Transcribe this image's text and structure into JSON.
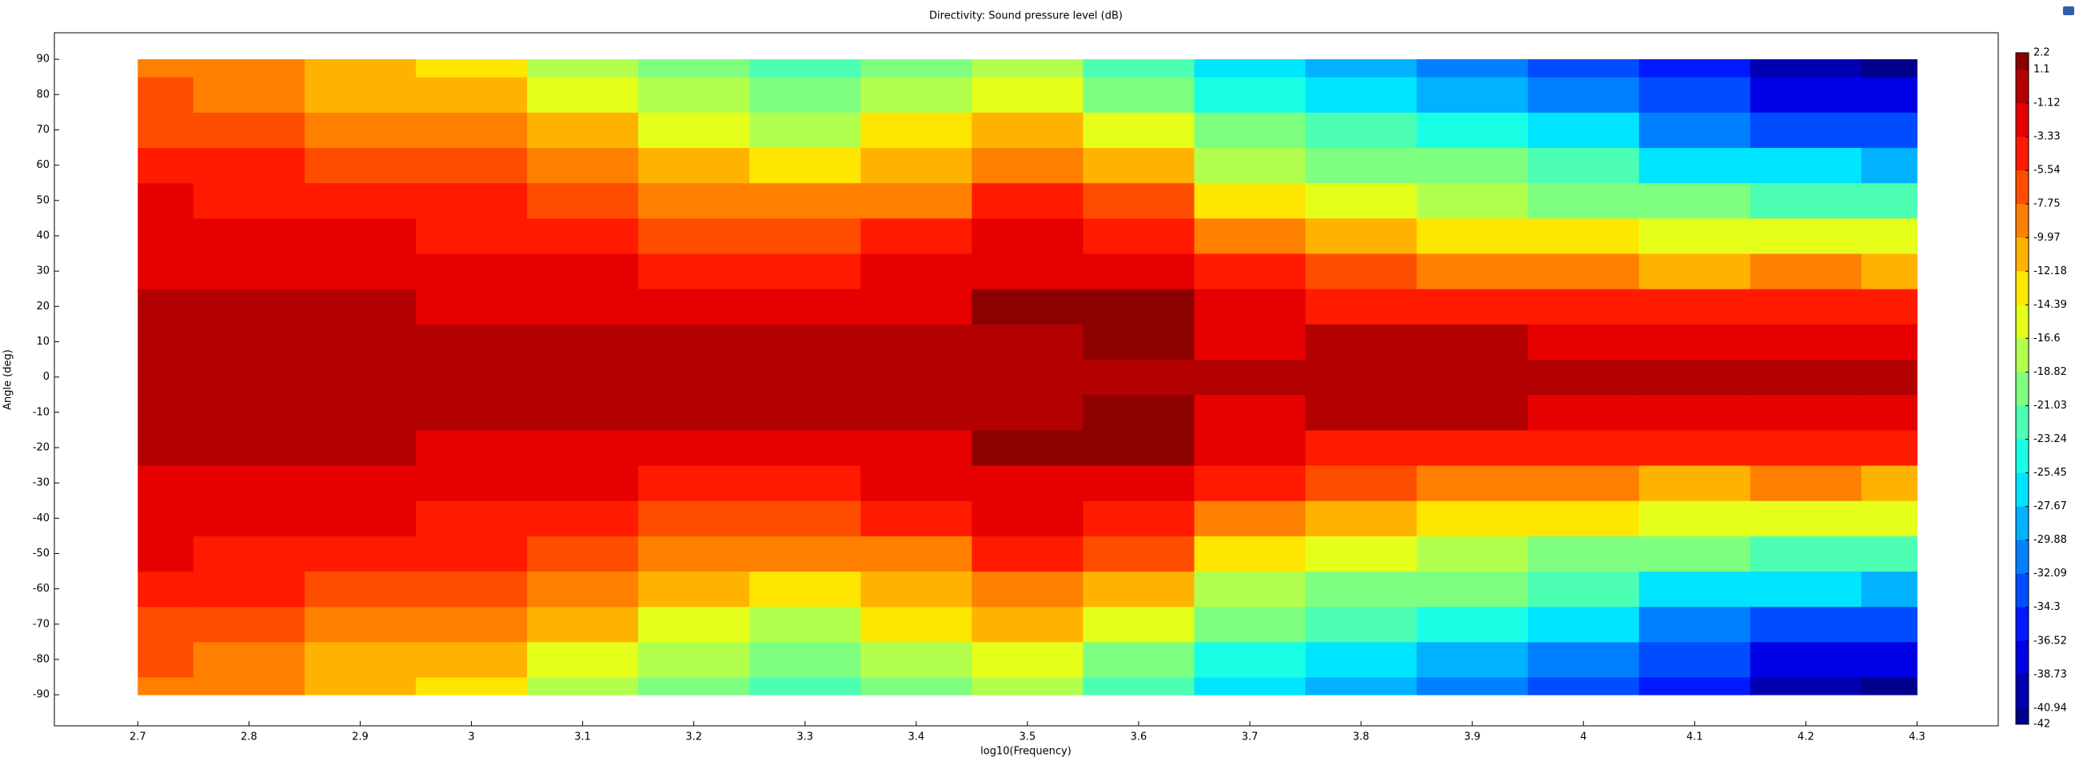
{
  "chart_data": {
    "type": "contour",
    "title": "Directivity: Sound pressure level (dB)",
    "xlabel": "log10(Frequency)",
    "ylabel": "Angle (deg)",
    "colormap": "jet",
    "xlim": [
      2.625,
      4.373
    ],
    "ylim": [
      -98.8,
      97.5
    ],
    "xticks": [
      2.7,
      2.8,
      2.9,
      3,
      3.1,
      3.2,
      3.3,
      3.4,
      3.5,
      3.6,
      3.7,
      3.8,
      3.9,
      4,
      4.1,
      4.2,
      4.3
    ],
    "yticks": [
      -90,
      -80,
      -70,
      -60,
      -50,
      -40,
      -30,
      -20,
      -10,
      0,
      10,
      20,
      30,
      40,
      50,
      60,
      70,
      80,
      90
    ],
    "levels": [
      2.2,
      1.1,
      -1.12,
      -3.33,
      -5.54,
      -7.75,
      -9.97,
      -12.18,
      -14.39,
      -16.6,
      -18.82,
      -21.03,
      -23.24,
      -25.45,
      -27.67,
      -29.88,
      -32.09,
      -34.3,
      -36.52,
      -38.73,
      -40.94,
      -42
    ],
    "x": [
      2.7,
      2.8,
      2.9,
      3.0,
      3.1,
      3.2,
      3.3,
      3.4,
      3.5,
      3.6,
      3.7,
      3.8,
      3.9,
      4.0,
      4.1,
      4.2,
      4.3
    ],
    "y": [
      -90,
      -80,
      -70,
      -60,
      -50,
      -40,
      -30,
      -20,
      -10,
      0,
      10,
      20,
      30,
      40,
      50,
      60,
      70,
      80,
      90
    ],
    "z": [
      [
        -8.2,
        -9,
        -11.5,
        -13,
        -17,
        -20,
        -22,
        -19.5,
        -17,
        -22,
        -26,
        -28,
        -30,
        -33,
        -36,
        -40,
        -41
      ],
      [
        -7.2,
        -8,
        -10,
        -11.5,
        -15,
        -18,
        -20,
        -17,
        -15,
        -19,
        -24,
        -26,
        -28,
        -30,
        -33,
        -37,
        -38
      ],
      [
        -5.8,
        -6.5,
        -8,
        -9.5,
        -12,
        -15,
        -17,
        -14,
        -12,
        -15,
        -21,
        -23,
        -25,
        -27,
        -30,
        -33,
        -33
      ],
      [
        -4.4,
        -5,
        -6.2,
        -7.5,
        -9.3,
        -11.5,
        -13,
        -11,
        -8,
        -11,
        -17,
        -19,
        -21,
        -23,
        -26,
        -27,
        -28
      ],
      [
        -3.2,
        -3.6,
        -4.5,
        -5.5,
        -7,
        -8.5,
        -9.5,
        -8,
        -5,
        -7,
        -13,
        -15,
        -17,
        -19,
        -21,
        -22,
        -22
      ],
      [
        -2.2,
        -2.3,
        -3,
        -3.8,
        -4.8,
        -6,
        -6.5,
        -5,
        -3,
        -4,
        -9,
        -11,
        -12.5,
        -14,
        -15,
        -15,
        -16
      ],
      [
        -1.3,
        -1.3,
        -1.8,
        -2.5,
        -3,
        -3.8,
        -4.2,
        -2.5,
        -1.5,
        -1.8,
        -5.5,
        -7,
        -8,
        -9,
        -10,
        -9,
        -10
      ],
      [
        -0.7,
        -0.7,
        -0.9,
        -1.3,
        -1.5,
        -1.8,
        -2,
        -1.3,
        1.4,
        1.5,
        -2.5,
        -3.5,
        -4,
        -4.5,
        -5,
        -4.5,
        -5
      ],
      [
        -0.3,
        -0.3,
        -0.5,
        -0.8,
        -0.9,
        -0.9,
        -1,
        -0.6,
        0.5,
        1.2,
        -1.4,
        -1,
        -0.8,
        -1.5,
        -1.5,
        -1.8,
        -2
      ],
      [
        0,
        -0.2,
        -0.3,
        -0.5,
        -0.6,
        -0.7,
        -0.8,
        -0.3,
        -0.3,
        -0.2,
        -0.5,
        -0.3,
        -0.3,
        -0.5,
        -0.5,
        -0.8,
        -1
      ],
      [
        -0.3,
        -0.3,
        -0.5,
        -0.8,
        -0.9,
        -0.9,
        -1,
        -0.6,
        0.5,
        1.2,
        -1.4,
        -1,
        -0.8,
        -1.5,
        -1.5,
        -1.8,
        -2
      ],
      [
        -0.7,
        -0.7,
        -0.9,
        -1.3,
        -1.5,
        -1.8,
        -2,
        -1.3,
        1.4,
        1.5,
        -2.5,
        -3.5,
        -4,
        -4.5,
        -5,
        -4.5,
        -5
      ],
      [
        -1.3,
        -1.3,
        -1.8,
        -2.5,
        -3,
        -3.8,
        -4.2,
        -2.5,
        -1.5,
        -1.8,
        -5.5,
        -7,
        -8,
        -9,
        -10,
        -9,
        -10
      ],
      [
        -2.2,
        -2.3,
        -3,
        -3.8,
        -4.8,
        -6,
        -6.5,
        -5,
        -3,
        -4,
        -9,
        -11,
        -12.5,
        -14,
        -15,
        -15,
        -16
      ],
      [
        -3.2,
        -3.6,
        -4.5,
        -5.5,
        -7,
        -8.5,
        -9.5,
        -8,
        -5,
        -7,
        -13,
        -15,
        -17,
        -19,
        -21,
        -22,
        -22
      ],
      [
        -4.4,
        -5,
        -6.2,
        -7.5,
        -9.3,
        -11.5,
        -13,
        -11,
        -8,
        -11,
        -17,
        -19,
        -21,
        -23,
        -26,
        -27,
        -28
      ],
      [
        -5.8,
        -6.5,
        -8,
        -9.5,
        -12,
        -15,
        -17,
        -14,
        -12,
        -15,
        -21,
        -23,
        -25,
        -27,
        -30,
        -33,
        -33
      ],
      [
        -7.2,
        -8,
        -10,
        -11.5,
        -15,
        -18,
        -20,
        -17,
        -15,
        -19,
        -24,
        -26,
        -28,
        -30,
        -33,
        -37,
        -38
      ],
      [
        -8.2,
        -9,
        -11.5,
        -13,
        -17,
        -20,
        -22,
        -19.5,
        -17,
        -22,
        -26,
        -28,
        -30,
        -33,
        -36,
        -40,
        -41
      ]
    ]
  }
}
